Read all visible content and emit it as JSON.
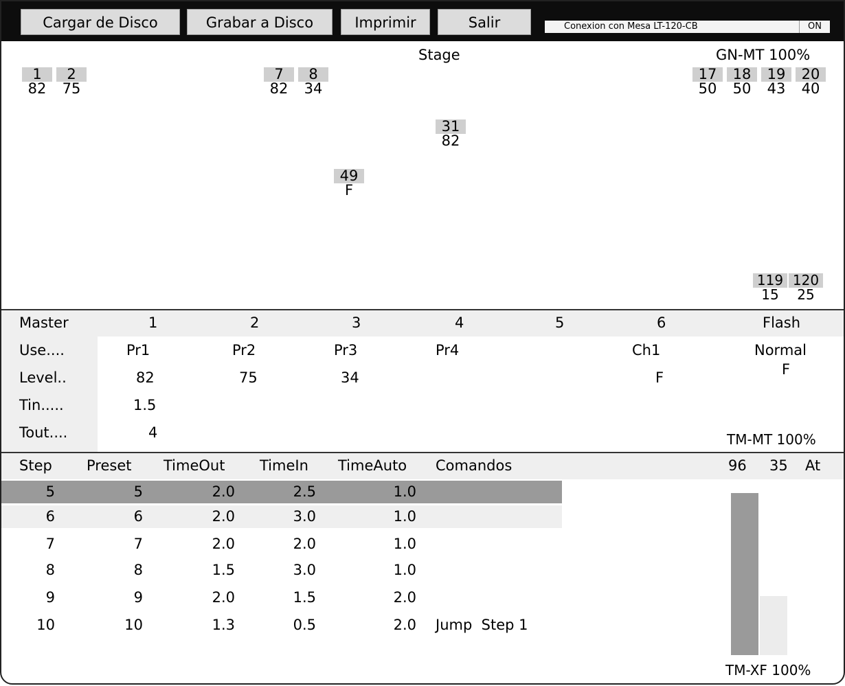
{
  "toolbar": {
    "load": "Cargar de Disco",
    "save": "Grabar a Disco",
    "print": "Imprimir",
    "exit": "Salir",
    "connection_text": "Conexion con Mesa LT-120-CB",
    "connection_state": "ON"
  },
  "stage": {
    "title": "Stage",
    "gn_mt": "GN-MT 100%",
    "channels": [
      {
        "num": "1",
        "val": "82"
      },
      {
        "num": "2",
        "val": "75"
      },
      {
        "num": "7",
        "val": "82"
      },
      {
        "num": "8",
        "val": "34"
      },
      {
        "num": "17",
        "val": "50"
      },
      {
        "num": "18",
        "val": "50"
      },
      {
        "num": "19",
        "val": "43"
      },
      {
        "num": "20",
        "val": "40"
      },
      {
        "num": "31",
        "val": "82"
      },
      {
        "num": "49",
        "val": "F"
      },
      {
        "num": "119",
        "val": "15"
      },
      {
        "num": "120",
        "val": "25"
      }
    ]
  },
  "masters": {
    "header": [
      "Master",
      "1",
      "2",
      "3",
      "4",
      "5",
      "6",
      "Flash"
    ],
    "labels": [
      "Use....",
      "Level..",
      "Tin.....",
      "Tout...."
    ],
    "use": [
      "Pr1",
      "Pr2",
      "Pr3",
      "Pr4",
      "",
      "Ch1",
      "Normal"
    ],
    "level": [
      "82",
      "75",
      "34",
      "",
      "",
      "F",
      "F"
    ],
    "tin": "1.5",
    "tout": "4",
    "tm_mt": "TM-MT 100%"
  },
  "steps": {
    "headers": [
      "Step",
      "Preset",
      "TimeOut",
      "TimeIn",
      "TimeAuto",
      "Comandos"
    ],
    "right_header": [
      "96",
      "35",
      "At"
    ],
    "rows": [
      {
        "step": "5",
        "preset": "5",
        "timeout": "2.0",
        "timein": "2.5",
        "timeauto": "1.0",
        "cmd": ""
      },
      {
        "step": "6",
        "preset": "6",
        "timeout": "2.0",
        "timein": "3.0",
        "timeauto": "1.0",
        "cmd": ""
      },
      {
        "step": "7",
        "preset": "7",
        "timeout": "2.0",
        "timein": "2.0",
        "timeauto": "1.0",
        "cmd": ""
      },
      {
        "step": "8",
        "preset": "8",
        "timeout": "1.5",
        "timein": "3.0",
        "timeauto": "1.0",
        "cmd": ""
      },
      {
        "step": "9",
        "preset": "9",
        "timeout": "2.0",
        "timein": "1.5",
        "timeauto": "2.0",
        "cmd": ""
      },
      {
        "step": "10",
        "preset": "10",
        "timeout": "1.3",
        "timein": "0.5",
        "timeauto": "2.0",
        "cmd": "Jump  Step 1"
      }
    ],
    "tm_xf": "TM-XF 100%",
    "bar_out_level": 0.99,
    "bar_in_level": 0.36
  },
  "colors": {
    "topbar": "#0d0d0d",
    "button": "#dcdcdc",
    "channel_box": "#cfcfcf",
    "header_bg": "#efefef",
    "active_row": "#9a9a9a",
    "next_row": "#efefef",
    "bar_dark": "#9a9a9a",
    "bar_light": "#ececec"
  }
}
